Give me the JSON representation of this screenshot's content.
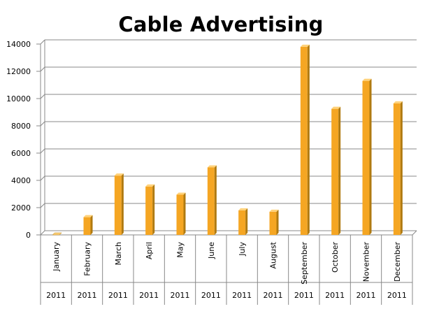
{
  "chart_data": {
    "type": "bar",
    "title": "Cable Advertising",
    "categories": [
      "January",
      "February",
      "March",
      "April",
      "May",
      "June",
      "July",
      "August",
      "September",
      "October",
      "November",
      "December"
    ],
    "group_labels": [
      "2011",
      "2011",
      "2011",
      "2011",
      "2011",
      "2011",
      "2011",
      "2011",
      "2011",
      "2011",
      "2011",
      "2011"
    ],
    "values": [
      0,
      1300,
      4350,
      3550,
      2950,
      4950,
      1800,
      1700,
      13800,
      9250,
      11300,
      9650
    ],
    "y_ticks": [
      "0",
      "2000",
      "4000",
      "6000",
      "8000",
      "10000",
      "12000",
      "14000"
    ],
    "ylim": [
      0,
      14000
    ],
    "grid": true,
    "colors": {
      "bar_front": "#f5a623",
      "bar_side": "#b07a10",
      "bar_top": "#ffd27a",
      "grid": "#888888",
      "axis": "#888888"
    }
  }
}
